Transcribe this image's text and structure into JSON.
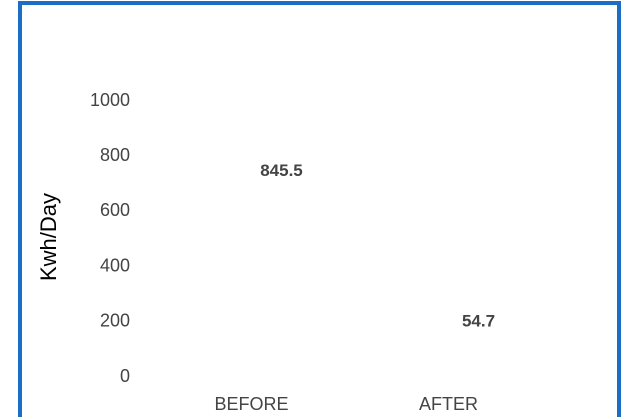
{
  "chart_data": {
    "type": "bar",
    "y_label": "Kwh/Day",
    "categories": [
      "BEFORE",
      "AFTER"
    ],
    "values": [
      845.5,
      54.7
    ],
    "color": "#ffffff",
    "ylim": [
      0,
      1000
    ],
    "yticks": [
      0,
      200,
      400,
      600,
      800,
      1000
    ],
    "grid": false
  }
}
